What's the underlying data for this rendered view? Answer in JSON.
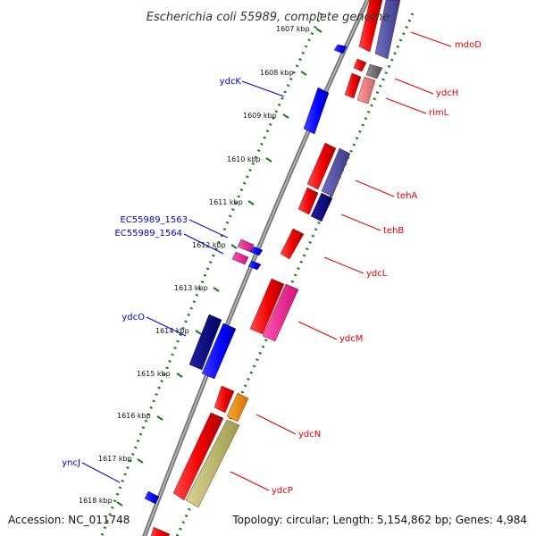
{
  "title": "Escherichia coli 55989, complete genome",
  "footer": {
    "accession": "Accession: NC_011748",
    "summary": "Topology: circular; Length: 5,154,862 bp; Genes: 4,984"
  },
  "ticks": [
    "1607 kbp",
    "1608 kbp",
    "1609 kbp",
    "1610 kbp",
    "1611 kbp",
    "1612 kbp",
    "1613 kbp",
    "1614 kbp",
    "1615 kbp",
    "1616 kbp",
    "1617 kbp",
    "1618 kbp"
  ],
  "genes": {
    "reverse": [
      {
        "name": "ydcK",
        "color": "#0000cc"
      },
      {
        "name": "EC55989_1563",
        "color": "#0000cc"
      },
      {
        "name": "EC55989_1564",
        "color": "#0000cc"
      },
      {
        "name": "ydcO",
        "color": "#0000cc"
      },
      {
        "name": "yncJ",
        "color": "#0000cc"
      }
    ],
    "forward": [
      {
        "name": "mdoD",
        "color": "#dd0000"
      },
      {
        "name": "ydcH",
        "color": "#dd0000"
      },
      {
        "name": "rimL",
        "color": "#dd0000"
      },
      {
        "name": "tehA",
        "color": "#dd0000"
      },
      {
        "name": "tehB",
        "color": "#dd0000"
      },
      {
        "name": "ydcL",
        "color": "#dd0000"
      },
      {
        "name": "ydcM",
        "color": "#dd0000"
      },
      {
        "name": "ydcN",
        "color": "#dd0000"
      },
      {
        "name": "ydcP",
        "color": "#dd0000"
      }
    ]
  },
  "colors": {
    "backbone": "#888888",
    "tick_ring": "#1a7a1a",
    "cds_forward": "#ff0000",
    "cds_reverse": "#0000ff",
    "cds_dark_blue": "#000080",
    "cds_purple": "#5050a0",
    "cds_pink": "#ff1493",
    "cds_salmon": "#f08080",
    "cds_gray": "#707070",
    "cds_orange": "#ff8c00",
    "cds_khaki": "#bdb76b"
  }
}
